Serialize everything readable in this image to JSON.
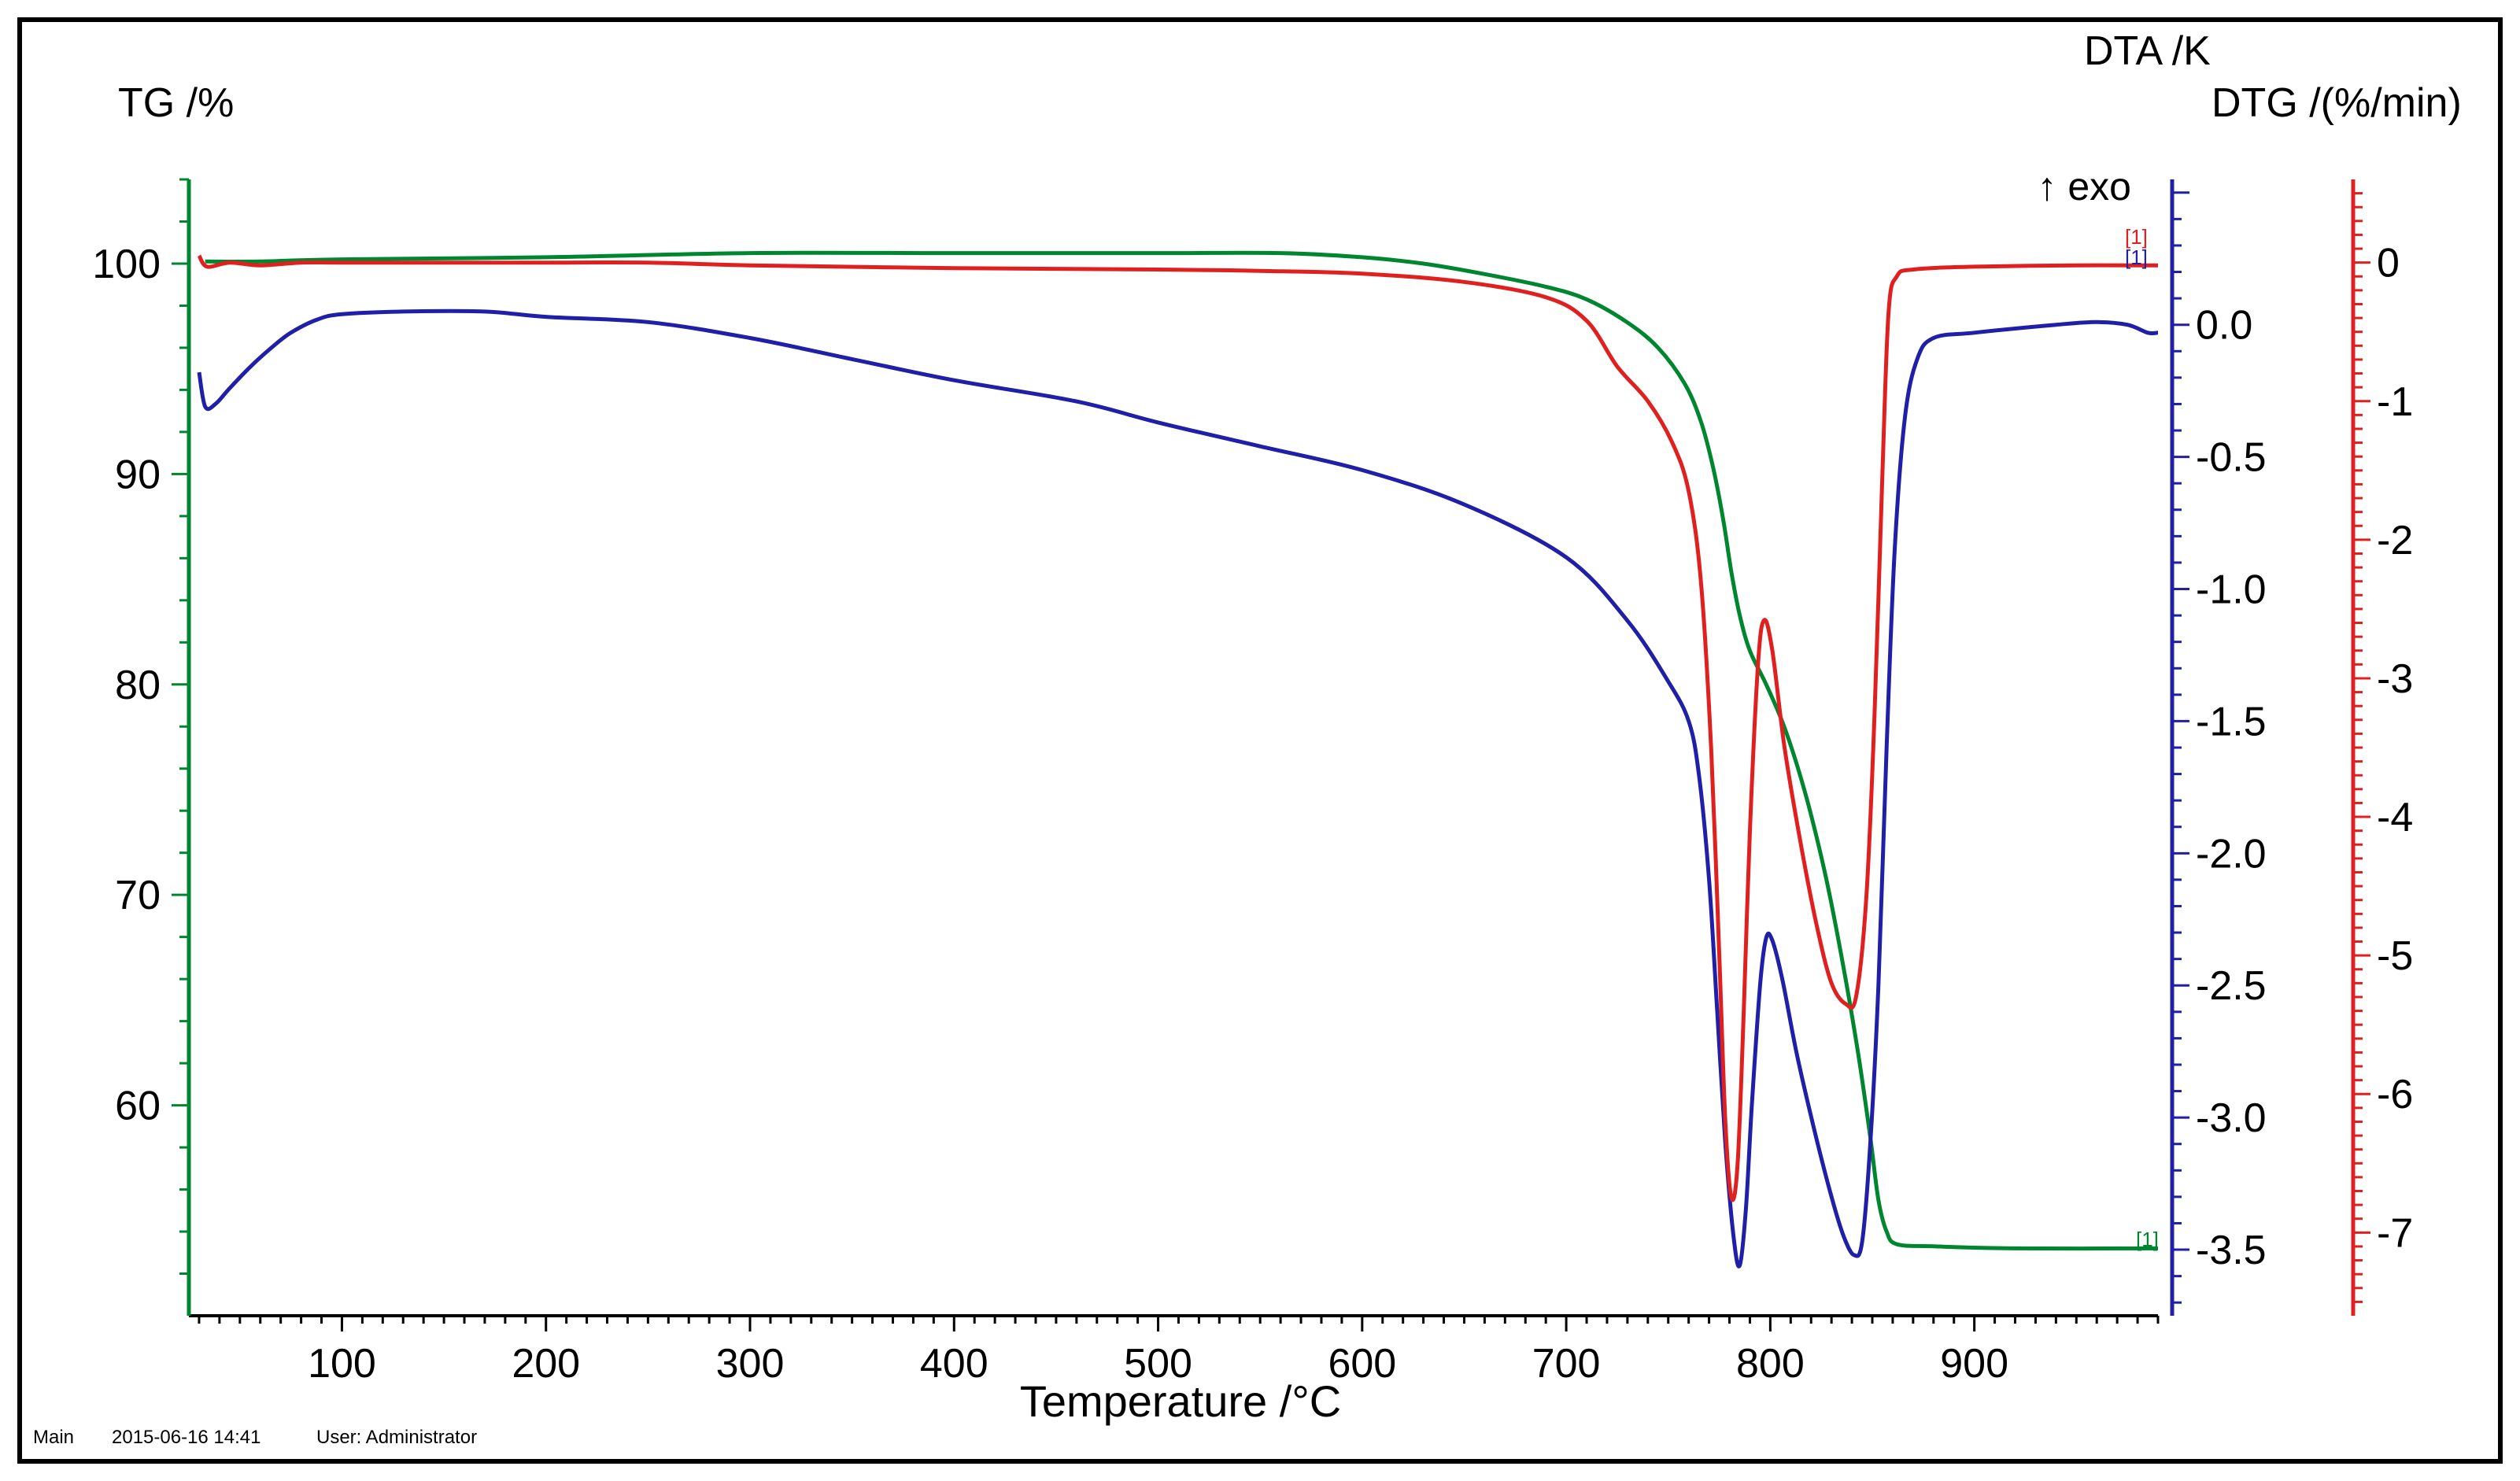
{
  "chart_data": {
    "type": "line",
    "xlabel": "Temperature /°C",
    "xlim": [
      25,
      990
    ],
    "x_ticks": [
      100,
      200,
      300,
      400,
      500,
      600,
      700,
      800,
      900
    ],
    "axes": {
      "tg": {
        "label": "TG /%",
        "lim": [
          50,
          104
        ],
        "ticks": [
          60,
          70,
          80,
          90,
          100
        ],
        "color": "#00862f"
      },
      "dta": {
        "label": "DTA /K",
        "lim": [
          -3.75,
          0.55
        ],
        "ticks": [
          "0.0",
          "-0.5",
          "-1.0",
          "-1.5",
          "-2.0",
          "-2.5",
          "-3.0",
          "-3.5"
        ],
        "color": "#1f1fa8"
      },
      "dtg": {
        "label": "DTG /(%/min)",
        "lim": [
          -7.6,
          0.6
        ],
        "ticks": [
          "0",
          "-1",
          "-2",
          "-3",
          "-4",
          "-5",
          "-6",
          "-7"
        ],
        "color": "#e0201f"
      }
    },
    "annotation": "↑ exo",
    "curve_markers": {
      "tg": "[1]",
      "dta": "[1]",
      "dtg": "[1]"
    },
    "series": [
      {
        "name": "TG",
        "axis": "tg",
        "color": "#00862f",
        "points": [
          [
            33,
            100.1
          ],
          [
            60,
            100.1
          ],
          [
            100,
            100.2
          ],
          [
            200,
            100.3
          ],
          [
            300,
            100.5
          ],
          [
            400,
            100.5
          ],
          [
            500,
            100.5
          ],
          [
            560,
            100.5
          ],
          [
            600,
            100.3
          ],
          [
            630,
            100.0
          ],
          [
            660,
            99.5
          ],
          [
            690,
            98.9
          ],
          [
            710,
            98.3
          ],
          [
            730,
            97.2
          ],
          [
            745,
            96.0
          ],
          [
            758,
            94.3
          ],
          [
            766,
            92.5
          ],
          [
            772,
            90.3
          ],
          [
            777,
            87.8
          ],
          [
            781,
            85.3
          ],
          [
            785,
            83.3
          ],
          [
            790,
            81.6
          ],
          [
            798,
            80.0
          ],
          [
            806,
            78.2
          ],
          [
            813,
            76.2
          ],
          [
            820,
            73.8
          ],
          [
            828,
            70.5
          ],
          [
            836,
            66.5
          ],
          [
            843,
            62.5
          ],
          [
            849,
            58.5
          ],
          [
            853,
            55.5
          ],
          [
            857,
            54.0
          ],
          [
            862,
            53.4
          ],
          [
            880,
            53.3
          ],
          [
            920,
            53.2
          ],
          [
            990,
            53.2
          ]
        ]
      },
      {
        "name": "DTA",
        "axis": "dta",
        "color": "#1f1fa8",
        "points": [
          [
            30,
            -0.18
          ],
          [
            33,
            -0.31
          ],
          [
            38,
            -0.3
          ],
          [
            45,
            -0.24
          ],
          [
            55,
            -0.16
          ],
          [
            65,
            -0.09
          ],
          [
            75,
            -0.03
          ],
          [
            88,
            0.02
          ],
          [
            100,
            0.04
          ],
          [
            130,
            0.05
          ],
          [
            170,
            0.05
          ],
          [
            200,
            0.03
          ],
          [
            250,
            0.01
          ],
          [
            300,
            -0.05
          ],
          [
            350,
            -0.13
          ],
          [
            400,
            -0.21
          ],
          [
            460,
            -0.29
          ],
          [
            500,
            -0.37
          ],
          [
            550,
            -0.46
          ],
          [
            600,
            -0.55
          ],
          [
            650,
            -0.68
          ],
          [
            700,
            -0.88
          ],
          [
            730,
            -1.12
          ],
          [
            750,
            -1.35
          ],
          [
            760,
            -1.5
          ],
          [
            765,
            -1.7
          ],
          [
            770,
            -2.1
          ],
          [
            774,
            -2.6
          ],
          [
            778,
            -3.1
          ],
          [
            782,
            -3.45
          ],
          [
            785,
            -3.56
          ],
          [
            788,
            -3.35
          ],
          [
            791,
            -2.95
          ],
          [
            795,
            -2.5
          ],
          [
            798,
            -2.32
          ],
          [
            801,
            -2.33
          ],
          [
            806,
            -2.48
          ],
          [
            813,
            -2.76
          ],
          [
            822,
            -3.06
          ],
          [
            830,
            -3.3
          ],
          [
            836,
            -3.45
          ],
          [
            841,
            -3.52
          ],
          [
            845,
            -3.47
          ],
          [
            849,
            -3.1
          ],
          [
            853,
            -2.5
          ],
          [
            857,
            -1.6
          ],
          [
            861,
            -0.85
          ],
          [
            866,
            -0.35
          ],
          [
            872,
            -0.13
          ],
          [
            880,
            -0.05
          ],
          [
            900,
            -0.03
          ],
          [
            940,
            0.0
          ],
          [
            960,
            0.01
          ],
          [
            975,
            0.0
          ],
          [
            985,
            -0.03
          ],
          [
            990,
            -0.03
          ]
        ]
      },
      {
        "name": "DTG",
        "axis": "dtg",
        "color": "#e0201f",
        "points": [
          [
            30,
            0.05
          ],
          [
            34,
            -0.03
          ],
          [
            45,
            0.0
          ],
          [
            60,
            -0.02
          ],
          [
            80,
            0.0
          ],
          [
            100,
            0.0
          ],
          [
            150,
            0.0
          ],
          [
            200,
            0.0
          ],
          [
            250,
            0.0
          ],
          [
            300,
            -0.02
          ],
          [
            400,
            -0.04
          ],
          [
            500,
            -0.05
          ],
          [
            550,
            -0.06
          ],
          [
            600,
            -0.08
          ],
          [
            650,
            -0.14
          ],
          [
            690,
            -0.25
          ],
          [
            710,
            -0.42
          ],
          [
            725,
            -0.75
          ],
          [
            740,
            -1.0
          ],
          [
            752,
            -1.3
          ],
          [
            760,
            -1.65
          ],
          [
            766,
            -2.3
          ],
          [
            771,
            -3.5
          ],
          [
            775,
            -5.0
          ],
          [
            778,
            -6.2
          ],
          [
            781,
            -6.75
          ],
          [
            784,
            -6.5
          ],
          [
            787,
            -5.4
          ],
          [
            790,
            -4.1
          ],
          [
            794,
            -2.9
          ],
          [
            797,
            -2.58
          ],
          [
            801,
            -2.8
          ],
          [
            807,
            -3.5
          ],
          [
            815,
            -4.2
          ],
          [
            823,
            -4.8
          ],
          [
            830,
            -5.2
          ],
          [
            837,
            -5.35
          ],
          [
            842,
            -5.3
          ],
          [
            847,
            -4.6
          ],
          [
            851,
            -3.3
          ],
          [
            855,
            -1.5
          ],
          [
            858,
            -0.35
          ],
          [
            862,
            -0.1
          ],
          [
            870,
            -0.05
          ],
          [
            900,
            -0.03
          ],
          [
            950,
            -0.02
          ],
          [
            990,
            -0.02
          ]
        ]
      }
    ]
  },
  "footer": {
    "segment_label": "Main",
    "timestamp": "2015-06-16 14:41",
    "user": "User: Administrator"
  }
}
